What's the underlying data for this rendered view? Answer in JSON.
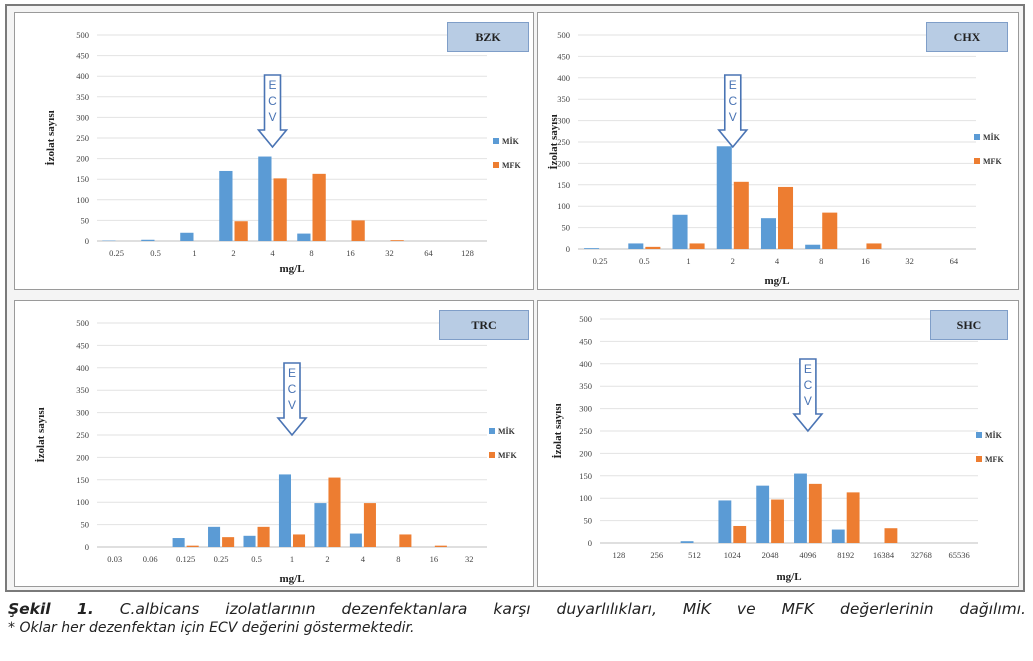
{
  "chart_data": [
    {
      "type": "bar",
      "title": "BZK",
      "xlabel": "mg/L",
      "ylabel": "İzolat sayısı",
      "ylim": [
        0,
        500
      ],
      "yticks": [
        0,
        50,
        100,
        150,
        200,
        250,
        300,
        350,
        400,
        450,
        500
      ],
      "categories": [
        "0.25",
        "0.5",
        "1",
        "2",
        "4",
        "8",
        "16",
        "32",
        "64",
        "128"
      ],
      "series": [
        {
          "name": "MİK",
          "color": "#5b9bd5",
          "values": [
            1,
            3,
            20,
            170,
            205,
            18,
            0,
            0,
            0,
            0
          ]
        },
        {
          "name": "MFK",
          "color": "#ed7d31",
          "values": [
            0,
            0,
            0,
            48,
            152,
            163,
            50,
            2,
            0,
            0
          ]
        }
      ],
      "annotation": {
        "text": "ECV",
        "category": "4"
      },
      "legend": "right",
      "grid": true
    },
    {
      "type": "bar",
      "title": "CHX",
      "xlabel": "mg/L",
      "ylabel": "İzolat sayısı",
      "ylim": [
        0,
        500
      ],
      "yticks": [
        0,
        50,
        100,
        150,
        200,
        250,
        300,
        350,
        400,
        450,
        500
      ],
      "categories": [
        "0.25",
        "0.5",
        "1",
        "2",
        "4",
        "8",
        "16",
        "32",
        "64"
      ],
      "series": [
        {
          "name": "MİK",
          "color": "#5b9bd5",
          "values": [
            2,
            13,
            80,
            240,
            72,
            10,
            0,
            0,
            0
          ]
        },
        {
          "name": "MFK",
          "color": "#ed7d31",
          "values": [
            0,
            5,
            13,
            157,
            145,
            85,
            13,
            0,
            0
          ]
        }
      ],
      "annotation": {
        "text": "ECV",
        "category": "2"
      },
      "legend": "right",
      "grid": true
    },
    {
      "type": "bar",
      "title": "TRC",
      "xlabel": "mg/L",
      "ylabel": "İzolat sayısı",
      "ylim": [
        0,
        500
      ],
      "yticks": [
        0,
        50,
        100,
        150,
        200,
        250,
        300,
        350,
        400,
        450,
        500
      ],
      "categories": [
        "0.03",
        "0.06",
        "0.125",
        "0.25",
        "0.5",
        "1",
        "2",
        "4",
        "8",
        "16",
        "32"
      ],
      "series": [
        {
          "name": "MİK",
          "color": "#5b9bd5",
          "values": [
            0,
            0,
            20,
            45,
            25,
            162,
            98,
            30,
            0,
            0,
            0
          ]
        },
        {
          "name": "MFK",
          "color": "#ed7d31",
          "values": [
            0,
            0,
            3,
            22,
            45,
            28,
            155,
            98,
            28,
            3,
            0
          ]
        }
      ],
      "annotation": {
        "text": "ECV",
        "category": "1"
      },
      "legend": "right",
      "grid": true
    },
    {
      "type": "bar",
      "title": "SHC",
      "xlabel": "mg/L",
      "ylabel": "İzolat sayısı",
      "ylim": [
        0,
        500
      ],
      "yticks": [
        0,
        50,
        100,
        150,
        200,
        250,
        300,
        350,
        400,
        450,
        500
      ],
      "categories": [
        "128",
        "256",
        "512",
        "1024",
        "2048",
        "4096",
        "8192",
        "16384",
        "32768",
        "65536"
      ],
      "series": [
        {
          "name": "MİK",
          "color": "#5b9bd5",
          "values": [
            0,
            0,
            4,
            95,
            128,
            155,
            30,
            0,
            0,
            0
          ]
        },
        {
          "name": "MFK",
          "color": "#ed7d31",
          "values": [
            0,
            0,
            0,
            38,
            97,
            132,
            113,
            33,
            0,
            0
          ]
        }
      ],
      "annotation": {
        "text": "ECV",
        "category": "4096"
      },
      "legend": "right",
      "grid": true
    }
  ],
  "caption": {
    "figure_label": "Şekil 1.",
    "line1": "C.albicans izolatlarının dezenfektanlara karşı duyarlılıkları, MİK ve MFK değerlerinin dağılımı.",
    "line2": "* Oklar her dezenfektan için ECV değerini göstermektedir."
  }
}
